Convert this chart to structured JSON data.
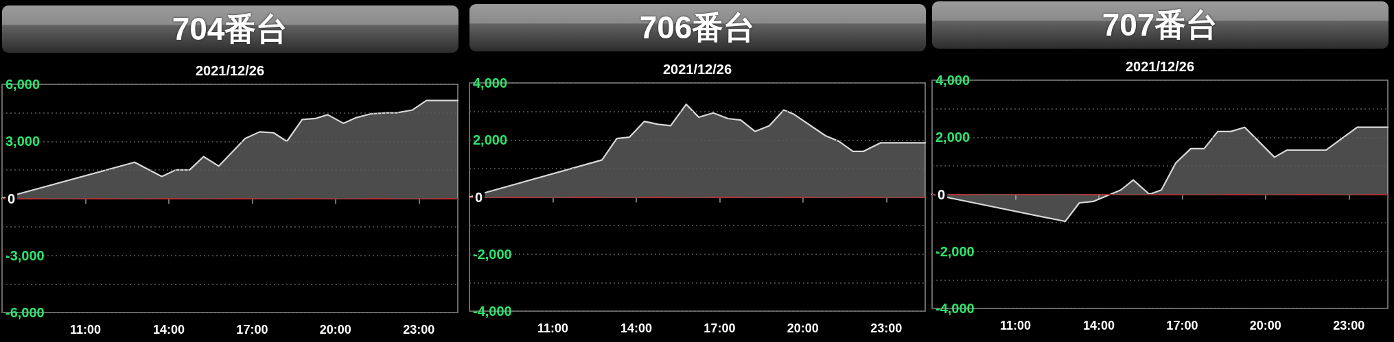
{
  "chart_data": [
    {
      "type": "area",
      "title": "704番台",
      "subtitle": "2021/12/26",
      "x": [
        8,
        12.77,
        13.75,
        14.25,
        14.75,
        15.25,
        15.8,
        16.75,
        17.27,
        17.77,
        18.25,
        18.8,
        19.27,
        19.72,
        20.28,
        20.75,
        21.28,
        21.85,
        22.2,
        22.77,
        23.27,
        23.78,
        24.4
      ],
      "values": [
        0,
        1900,
        1150,
        1500,
        1500,
        2200,
        1700,
        3150,
        3500,
        3450,
        3000,
        4150,
        4200,
        4400,
        3950,
        4250,
        4450,
        4500,
        4500,
        4650,
        5150,
        5150,
        5150
      ],
      "color": "#d9d9d9",
      "xlim": [
        8,
        24.4
      ],
      "xticks": [
        {
          "value": 11,
          "label": "11:00"
        },
        {
          "value": 14,
          "label": "14:00"
        },
        {
          "value": 17,
          "label": "17:00"
        },
        {
          "value": 20,
          "label": "20:00"
        },
        {
          "value": 23,
          "label": "23:00"
        }
      ],
      "ylim": [
        -6000,
        6000
      ],
      "yticks": [
        {
          "value": -6000,
          "label": "-6,000"
        },
        {
          "value": -4500,
          "label": null
        },
        {
          "value": -3000,
          "label": "-3,000"
        },
        {
          "value": -1500,
          "label": null
        },
        {
          "value": 0,
          "label": "0"
        },
        {
          "value": 1500,
          "label": null
        },
        {
          "value": 3000,
          "label": "3,000"
        },
        {
          "value": 4500,
          "label": null
        },
        {
          "value": 6000,
          "label": "6,000"
        }
      ],
      "grid": "y",
      "ref_lines": [
        {
          "axis": "y",
          "value": 0,
          "color": "#b03030"
        }
      ]
    },
    {
      "type": "area",
      "title": "706番台",
      "subtitle": "2021/12/26",
      "x": [
        8,
        12.77,
        13.3,
        13.76,
        14.29,
        14.79,
        15.24,
        15.8,
        16.25,
        16.77,
        17.3,
        17.76,
        18.28,
        18.79,
        19.31,
        19.68,
        20.81,
        21.3,
        21.8,
        22.17,
        22.79,
        24.4
      ],
      "values": [
        0,
        1300,
        2050,
        2100,
        2650,
        2550,
        2500,
        3250,
        2800,
        2950,
        2750,
        2700,
        2300,
        2500,
        3050,
        2900,
        2150,
        1950,
        1600,
        1600,
        1900,
        1900
      ],
      "color": "#d9d9d9",
      "xlim": [
        8,
        24.4
      ],
      "xticks": [
        {
          "value": 11,
          "label": "11:00"
        },
        {
          "value": 14,
          "label": "14:00"
        },
        {
          "value": 17,
          "label": "17:00"
        },
        {
          "value": 20,
          "label": "20:00"
        },
        {
          "value": 23,
          "label": "23:00"
        }
      ],
      "ylim": [
        -4000,
        4000
      ],
      "yticks": [
        {
          "value": -4000,
          "label": "-4,000"
        },
        {
          "value": -3000,
          "label": null
        },
        {
          "value": -2000,
          "label": "-2,000"
        },
        {
          "value": -1000,
          "label": null
        },
        {
          "value": 0,
          "label": "0"
        },
        {
          "value": 1000,
          "label": null
        },
        {
          "value": 2000,
          "label": "2,000"
        },
        {
          "value": 3000,
          "label": null
        },
        {
          "value": 4000,
          "label": "4,000"
        }
      ],
      "grid": "y",
      "ref_lines": [
        {
          "axis": "y",
          "value": 0,
          "color": "#b03030"
        }
      ]
    },
    {
      "type": "area",
      "title": "707番台",
      "subtitle": "2021/12/26",
      "x": [
        8,
        12.79,
        13.3,
        13.8,
        14.79,
        15.24,
        15.82,
        16.25,
        16.77,
        17.31,
        17.79,
        18.28,
        18.75,
        19.25,
        20.32,
        20.77,
        22.18,
        23.3,
        24.4
      ],
      "values": [
        0,
        -950,
        -300,
        -250,
        150,
        500,
        0,
        150,
        1100,
        1600,
        1600,
        2200,
        2200,
        2350,
        1300,
        1550,
        1550,
        2350,
        2350
      ],
      "color": "#d9d9d9",
      "xlim": [
        8,
        24.4
      ],
      "xticks": [
        {
          "value": 11,
          "label": "11:00"
        },
        {
          "value": 14,
          "label": "14:00"
        },
        {
          "value": 17,
          "label": "17:00"
        },
        {
          "value": 20,
          "label": "20:00"
        },
        {
          "value": 23,
          "label": "23:00"
        }
      ],
      "ylim": [
        -4000,
        4000
      ],
      "yticks": [
        {
          "value": -4000,
          "label": "-4,000"
        },
        {
          "value": -3000,
          "label": null
        },
        {
          "value": -2000,
          "label": "-2,000"
        },
        {
          "value": -1000,
          "label": null
        },
        {
          "value": 0,
          "label": "0"
        },
        {
          "value": 1000,
          "label": null
        },
        {
          "value": 2000,
          "label": "2,000"
        },
        {
          "value": 3000,
          "label": null
        },
        {
          "value": 4000,
          "label": "4,000"
        }
      ],
      "grid": "y",
      "ref_lines": [
        {
          "axis": "y",
          "value": 0,
          "color": "#b03030"
        }
      ]
    }
  ]
}
